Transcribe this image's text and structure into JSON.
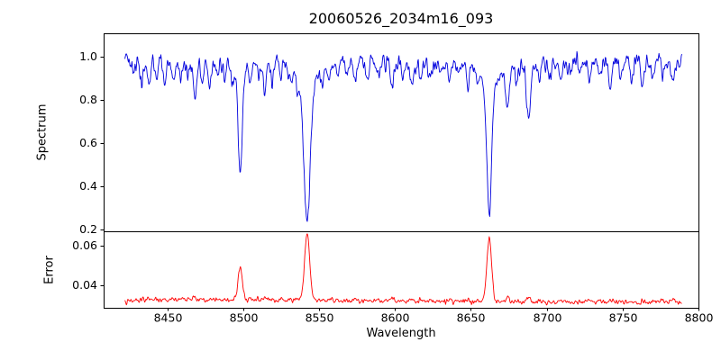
{
  "figure": {
    "title": "20060526_2034m16_093",
    "xlabel": "Wavelength",
    "background": "#ffffff",
    "spine_color": "#000000",
    "tick_label_color": "#000000"
  },
  "x_axis": {
    "ticks": [
      {
        "value": 8450,
        "label": "8450"
      },
      {
        "value": 8500,
        "label": "8500"
      },
      {
        "value": 8550,
        "label": "8550"
      },
      {
        "value": 8600,
        "label": "8600"
      },
      {
        "value": 8650,
        "label": "8650"
      },
      {
        "value": 8700,
        "label": "8700"
      },
      {
        "value": 8750,
        "label": "8750"
      },
      {
        "value": 8800,
        "label": "8800"
      }
    ],
    "xlim": [
      8408,
      8800
    ]
  },
  "chart_data": [
    {
      "type": "line",
      "panel": "spectrum",
      "ylabel": "Spectrum",
      "line_color": "#0000dd",
      "x_range": [
        8422,
        8789
      ],
      "xlim": [
        8408,
        8800
      ],
      "ylim": [
        0.19,
        1.11
      ],
      "yticks": [
        {
          "value": 0.2,
          "label": "0.2"
        },
        {
          "value": 0.4,
          "label": "0.4"
        },
        {
          "value": 0.6,
          "label": "0.6"
        },
        {
          "value": 0.8,
          "label": "0.8"
        },
        {
          "value": 1.0,
          "label": "1.0"
        }
      ],
      "continuum": 0.975,
      "noise_sigma": 0.018,
      "absorption_lines": [
        {
          "center": 8498.0,
          "depth": 0.435,
          "width": 1.2,
          "wing_depth": 0.1,
          "wing_width": 3.5
        },
        {
          "center": 8542.1,
          "depth": 0.62,
          "width": 2.0,
          "wing_depth": 0.13,
          "wing_width": 6.0
        },
        {
          "center": 8662.1,
          "depth": 0.575,
          "width": 1.5,
          "wing_depth": 0.13,
          "wing_width": 5.0
        }
      ],
      "minor_lines": [
        [
          8427,
          0.05
        ],
        [
          8433,
          0.08
        ],
        [
          8438,
          0.12
        ],
        [
          8443,
          0.07
        ],
        [
          8448,
          0.1
        ],
        [
          8454,
          0.06
        ],
        [
          8459,
          0.09
        ],
        [
          8464,
          0.07
        ],
        [
          8468,
          0.16
        ],
        [
          8473,
          0.08
        ],
        [
          8478,
          0.11
        ],
        [
          8483,
          0.07
        ],
        [
          8488,
          0.09
        ],
        [
          8493,
          0.06
        ],
        [
          8505,
          0.09
        ],
        [
          8510,
          0.07
        ],
        [
          8514,
          0.13
        ],
        [
          8519,
          0.09
        ],
        [
          8525,
          0.06
        ],
        [
          8531,
          0.08
        ],
        [
          8536,
          0.07
        ],
        [
          8552,
          0.06
        ],
        [
          8557,
          0.08
        ],
        [
          8562,
          0.06
        ],
        [
          8568,
          0.05
        ],
        [
          8574,
          0.07
        ],
        [
          8582,
          0.09
        ],
        [
          8589,
          0.06
        ],
        [
          8598,
          0.11
        ],
        [
          8605,
          0.06
        ],
        [
          8611,
          0.1
        ],
        [
          8617,
          0.07
        ],
        [
          8623,
          0.06
        ],
        [
          8630,
          0.05
        ],
        [
          8636,
          0.07
        ],
        [
          8642,
          0.05
        ],
        [
          8648,
          0.09
        ],
        [
          8654,
          0.06
        ],
        [
          8674,
          0.2
        ],
        [
          8680,
          0.09
        ],
        [
          8688,
          0.26
        ],
        [
          8695,
          0.08
        ],
        [
          8702,
          0.06
        ],
        [
          8709,
          0.09
        ],
        [
          8715,
          0.06
        ],
        [
          8722,
          0.05
        ],
        [
          8728,
          0.08
        ],
        [
          8735,
          0.06
        ],
        [
          8742,
          0.1
        ],
        [
          8749,
          0.05
        ],
        [
          8756,
          0.07
        ],
        [
          8763,
          0.12
        ],
        [
          8770,
          0.08
        ],
        [
          8777,
          0.06
        ],
        [
          8783,
          0.09
        ]
      ]
    },
    {
      "type": "line",
      "panel": "error",
      "ylabel": "Error",
      "line_color": "#ff0000",
      "x_range": [
        8422,
        8789
      ],
      "xlim": [
        8408,
        8800
      ],
      "ylim": [
        0.0285,
        0.0675
      ],
      "yticks": [
        {
          "value": 0.04,
          "label": "0.04"
        },
        {
          "value": 0.06,
          "label": "0.06"
        }
      ],
      "baseline": 0.0316,
      "noise_sigma": 0.0006,
      "minor_bump_scale": 0.013,
      "spikes": [
        {
          "center": 8498.0,
          "height": 0.0165,
          "width": 1.5
        },
        {
          "center": 8542.1,
          "height": 0.0345,
          "width": 1.7
        },
        {
          "center": 8662.1,
          "height": 0.033,
          "width": 1.6
        }
      ]
    }
  ]
}
